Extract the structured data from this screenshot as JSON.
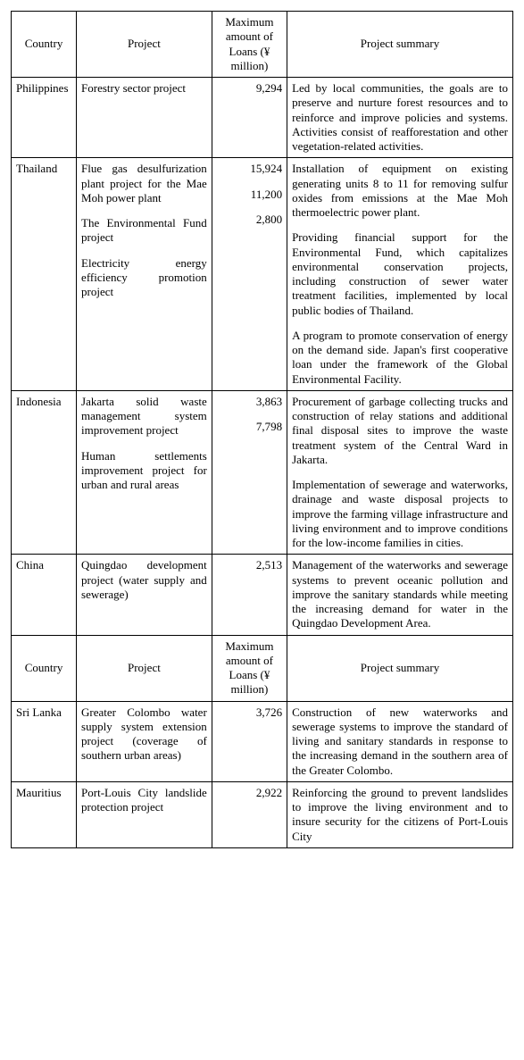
{
  "columns": {
    "country": "Country",
    "project": "Project",
    "amount": "Maximum amount of Loans (¥ million)",
    "summary": "Project summary"
  },
  "rows": [
    {
      "country": "Philippines",
      "items": [
        {
          "project": "Forestry sector project",
          "amount": "9,294",
          "summary": "Led by local communities, the goals are to preserve and nurture forest resources and to reinforce and improve policies and systems. Activities consist of reafforestation and other vegetation-related activities."
        }
      ]
    },
    {
      "country": "Thailand",
      "items": [
        {
          "project": "Flue gas desulfurization plant project for the Mae Moh power plant",
          "amount": "15,924",
          "summary": "Installation of equipment on existing generating units 8 to 11 for removing sulfur oxides from emissions at the Mae Moh thermoelectric power plant."
        },
        {
          "project": "The Environmental Fund project",
          "amount": "11,200",
          "summary": "Providing financial support for the Environmental Fund, which capitalizes environmental conservation projects, including construction of sewer water treatment facilities, implemented by local public bodies of Thailand."
        },
        {
          "project": "Electricity energy efficiency promotion project",
          "amount": "2,800",
          "summary": "A program to promote conservation of energy on the demand side. Japan's first cooperative loan under the framework of the Global Environmental Facility."
        }
      ]
    },
    {
      "country": "Indonesia",
      "items": [
        {
          "project": "Jakarta solid waste management system improvement project",
          "amount": "3,863",
          "summary": "Procurement of garbage collecting trucks and construction of relay stations and additional final disposal sites to improve the waste treatment system of the Central Ward in Jakarta."
        },
        {
          "project": "Human settlements improvement project for urban and rural areas",
          "amount": "7,798",
          "summary": "Implementation of sewerage and waterworks, drainage and waste disposal projects to improve the farming village infrastructure and living environment and to improve conditions for the low-income families in cities."
        }
      ]
    },
    {
      "country": "China",
      "items": [
        {
          "project": "Quingdao development project (water supply and sewerage)",
          "amount": "2,513",
          "summary": "Management of the waterworks and sewerage systems to prevent oceanic pollution and improve the sanitary standards while meeting the increasing demand for water in the Quingdao Development Area."
        }
      ]
    }
  ],
  "rows2": [
    {
      "country": "Sri Lanka",
      "items": [
        {
          "project": "Greater Colombo water supply system extension project (coverage of southern urban areas)",
          "amount": "3,726",
          "summary": "Construction of new waterworks and sewerage systems to improve the standard of living and sanitary standards in response to the increasing demand in the southern area of the Greater Colombo."
        }
      ]
    },
    {
      "country": "Mauritius",
      "items": [
        {
          "project": "Port-Louis City landslide protection project",
          "amount": "2,922",
          "summary": "Reinforcing the ground to prevent landslides to improve the living environment and to insure security for the citizens of Port-Louis City"
        }
      ]
    }
  ]
}
